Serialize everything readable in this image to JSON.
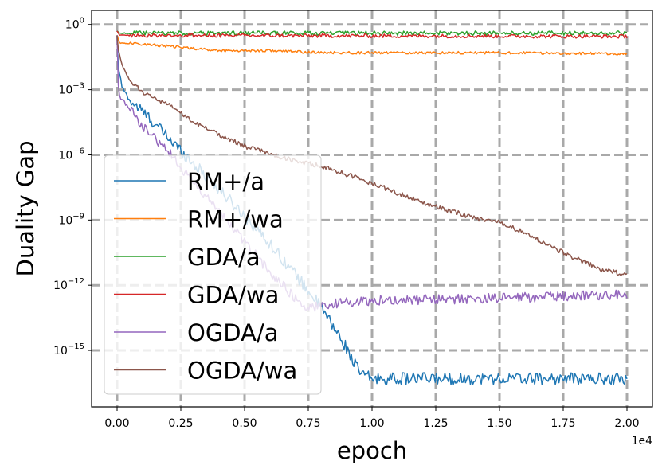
{
  "chart_data": {
    "type": "line",
    "title": "",
    "xlabel": "epoch",
    "ylabel": "Duality Gap",
    "x_offset_label": "1e4",
    "x_tick_values": [
      0.0,
      0.25,
      0.5,
      0.75,
      1.0,
      1.25,
      1.5,
      1.75,
      2.0
    ],
    "x_tick_labels": [
      "0.00",
      "0.25",
      "0.50",
      "0.75",
      "1.00",
      "1.25",
      "1.50",
      "1.75",
      "2.00"
    ],
    "y_scale": "log",
    "y_tick_exponents": [
      0,
      -3,
      -6,
      -9,
      -12,
      -15
    ],
    "y_tick_labels": [
      {
        "base": "10",
        "exp": "0"
      },
      {
        "base": "10",
        "exp": "−3"
      },
      {
        "base": "10",
        "exp": "−6"
      },
      {
        "base": "10",
        "exp": "−9"
      },
      {
        "base": "10",
        "exp": "−12"
      },
      {
        "base": "10",
        "exp": "−15"
      }
    ],
    "xlim": [
      -0.1,
      2.1
    ],
    "ylim_log10": [
      -17.6,
      0.65
    ],
    "grid": true,
    "legend_position": "lower-left",
    "series": [
      {
        "name": "RM+/a",
        "color": "#1f77b4",
        "noise": 0.55,
        "points": [
          [
            0,
            -0.5
          ],
          [
            0.002,
            -1.8
          ],
          [
            0.02,
            -2.9
          ],
          [
            0.05,
            -3.5
          ],
          [
            0.1,
            -4.0
          ],
          [
            0.2,
            -5.2
          ],
          [
            0.3,
            -6.4
          ],
          [
            0.4,
            -7.6
          ],
          [
            0.5,
            -8.8
          ],
          [
            0.6,
            -10.1
          ],
          [
            0.7,
            -11.5
          ],
          [
            0.8,
            -13.0
          ],
          [
            0.9,
            -14.9
          ],
          [
            0.95,
            -16.0
          ],
          [
            1.0,
            -16.3
          ],
          [
            2.0,
            -16.3
          ]
        ]
      },
      {
        "name": "RM+/wa",
        "color": "#ff7f0e",
        "noise": 0.12,
        "points": [
          [
            0,
            -0.5
          ],
          [
            0.01,
            -0.85
          ],
          [
            0.1,
            -0.9
          ],
          [
            0.2,
            -1.0
          ],
          [
            0.4,
            -1.2
          ],
          [
            0.6,
            -1.2
          ],
          [
            0.8,
            -1.3
          ],
          [
            1.0,
            -1.3
          ],
          [
            1.5,
            -1.3
          ],
          [
            2.0,
            -1.35
          ]
        ]
      },
      {
        "name": "GDA/a",
        "color": "#2ca02c",
        "noise": 0.2,
        "points": [
          [
            0,
            -0.3
          ],
          [
            0.01,
            -0.4
          ],
          [
            2.0,
            -0.4
          ]
        ]
      },
      {
        "name": "GDA/wa",
        "color": "#d62728",
        "noise": 0.17,
        "points": [
          [
            0,
            -0.3
          ],
          [
            0.01,
            -0.5
          ],
          [
            2.0,
            -0.55
          ]
        ]
      },
      {
        "name": "OGDA/a",
        "color": "#9467bd",
        "noise": 0.45,
        "points": [
          [
            0,
            -0.5
          ],
          [
            0.002,
            -2.5
          ],
          [
            0.01,
            -3.3
          ],
          [
            0.05,
            -3.9
          ],
          [
            0.1,
            -4.7
          ],
          [
            0.2,
            -5.8
          ],
          [
            0.3,
            -7.3
          ],
          [
            0.4,
            -8.6
          ],
          [
            0.5,
            -10.0
          ],
          [
            0.6,
            -11.4
          ],
          [
            0.7,
            -12.6
          ],
          [
            0.75,
            -13.1
          ],
          [
            0.8,
            -12.9
          ],
          [
            1.0,
            -12.7
          ],
          [
            1.5,
            -12.6
          ],
          [
            2.0,
            -12.4
          ]
        ]
      },
      {
        "name": "OGDA/wa",
        "color": "#8c564b",
        "noise": 0.22,
        "points": [
          [
            0,
            -0.5
          ],
          [
            0.002,
            -1.0
          ],
          [
            0.02,
            -1.9
          ],
          [
            0.05,
            -2.6
          ],
          [
            0.1,
            -3.1
          ],
          [
            0.2,
            -3.7
          ],
          [
            0.3,
            -4.5
          ],
          [
            0.5,
            -5.6
          ],
          [
            0.7,
            -6.3
          ],
          [
            0.8,
            -6.5
          ],
          [
            1.0,
            -7.3
          ],
          [
            1.2,
            -8.2
          ],
          [
            1.4,
            -8.9
          ],
          [
            1.5,
            -9.1
          ],
          [
            1.6,
            -9.6
          ],
          [
            1.75,
            -10.5
          ],
          [
            1.9,
            -11.3
          ],
          [
            2.0,
            -11.5
          ]
        ]
      }
    ]
  }
}
